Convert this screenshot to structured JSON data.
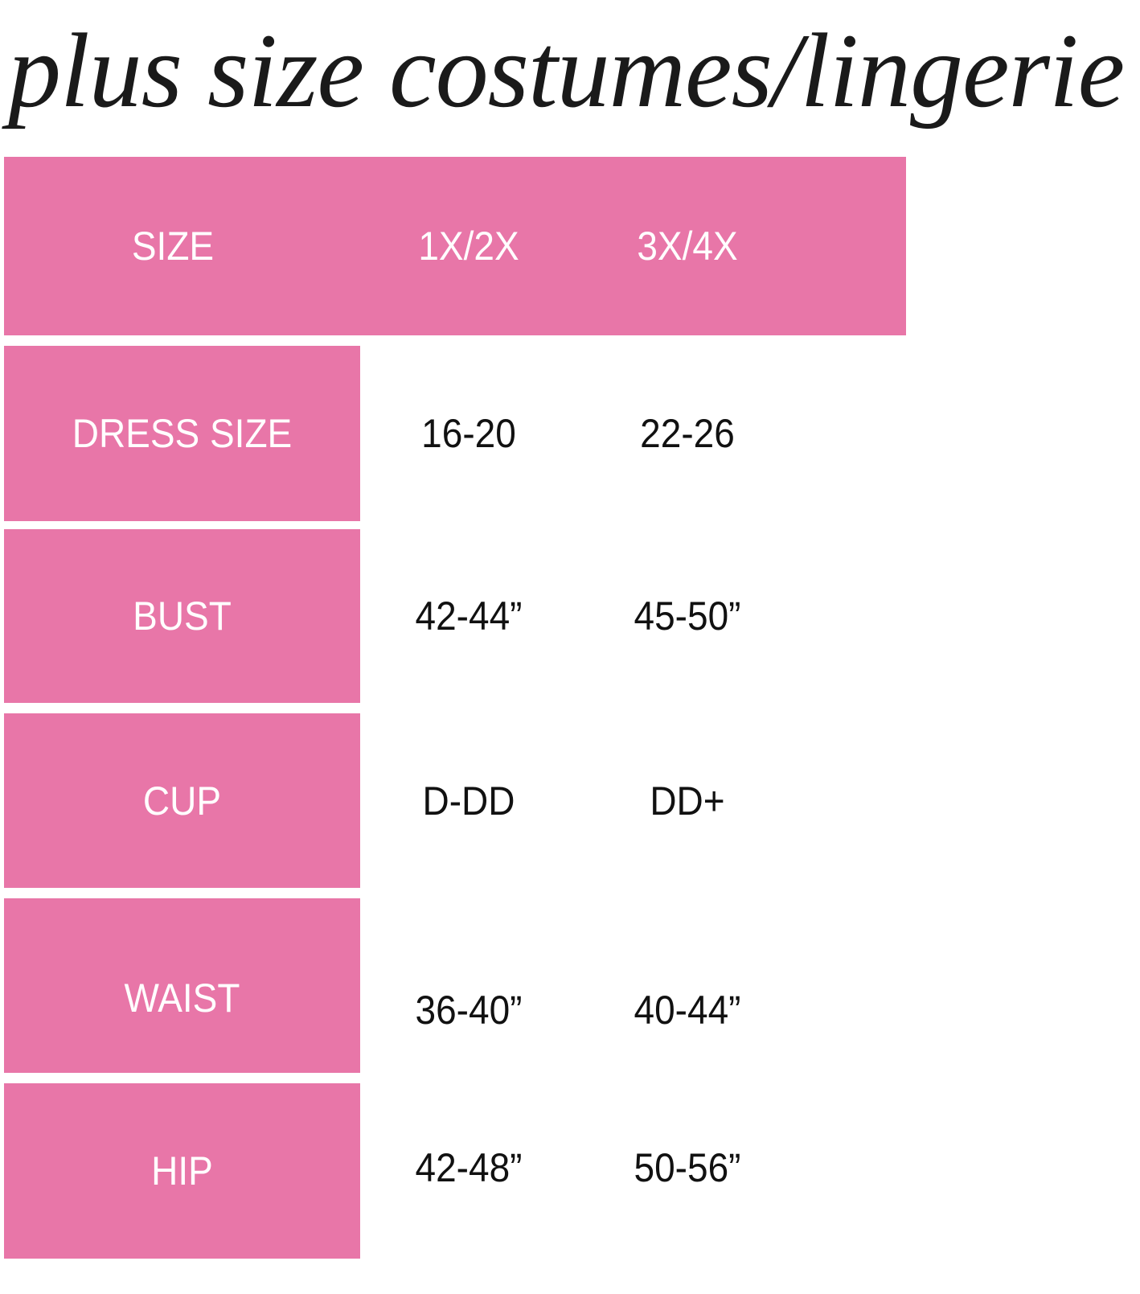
{
  "title": "plus size costumes/lingerie",
  "colors": {
    "accent": "#e876a8",
    "header_text": "#ffffff",
    "value_text": "#111111"
  },
  "table": {
    "headers": [
      "SIZE",
      "1X/2X",
      "3X/4X"
    ],
    "rows": [
      {
        "label": "DRESS SIZE",
        "values": [
          "16-20",
          "22-26"
        ]
      },
      {
        "label": "BUST",
        "values": [
          "42-44”",
          "45-50”"
        ]
      },
      {
        "label": "CUP",
        "values": [
          "D-DD",
          "DD+"
        ]
      },
      {
        "label": "WAIST",
        "values": [
          "36-40”",
          "40-44”"
        ]
      },
      {
        "label": "HIP",
        "values": [
          "42-48”",
          "50-56”"
        ]
      }
    ]
  }
}
